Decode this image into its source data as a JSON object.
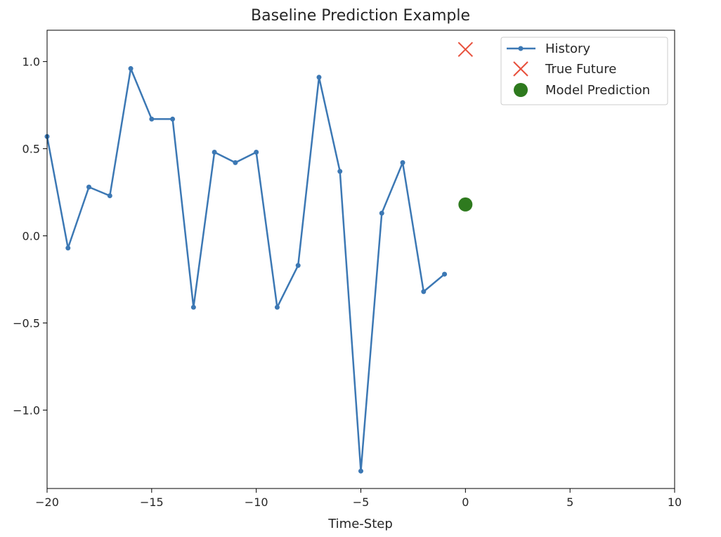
{
  "chart_data": {
    "type": "line",
    "title": "Baseline Prediction Example",
    "xlabel": "Time-Step",
    "ylabel": "",
    "xlim": [
      -20,
      10
    ],
    "ylim": [
      -1.45,
      1.18
    ],
    "xticks": [
      -20,
      -15,
      -10,
      -5,
      0,
      5,
      10
    ],
    "xtick_labels": [
      "−20",
      "−15",
      "−10",
      "−5",
      "0",
      "5",
      "10"
    ],
    "yticks": [
      -1.0,
      -0.5,
      0.0,
      0.5,
      1.0
    ],
    "ytick_labels": [
      "−1.0",
      "−0.5",
      "0.0",
      "0.5",
      "1.0"
    ],
    "grid": false,
    "legend_position": "top-right",
    "series": [
      {
        "name": "History",
        "marker": "dot-line",
        "color": "#3c78b4",
        "x": [
          -20,
          -19,
          -18,
          -17,
          -16,
          -15,
          -14,
          -13,
          -12,
          -11,
          -10,
          -9,
          -8,
          -7,
          -6,
          -5,
          -4,
          -3,
          -2,
          -1
        ],
        "y": [
          0.57,
          -0.07,
          0.28,
          0.23,
          0.96,
          0.67,
          0.67,
          -0.41,
          0.48,
          0.42,
          0.48,
          -0.41,
          -0.17,
          0.91,
          0.37,
          -1.35,
          0.13,
          0.42,
          -0.32,
          -0.22
        ]
      },
      {
        "name": "True Future",
        "marker": "x",
        "color": "#e8503c",
        "x": [
          0
        ],
        "y": [
          1.07
        ]
      },
      {
        "name": "Model Prediction",
        "marker": "circle",
        "color": "#2e7a1e",
        "x": [
          0
        ],
        "y": [
          0.18
        ]
      }
    ]
  }
}
